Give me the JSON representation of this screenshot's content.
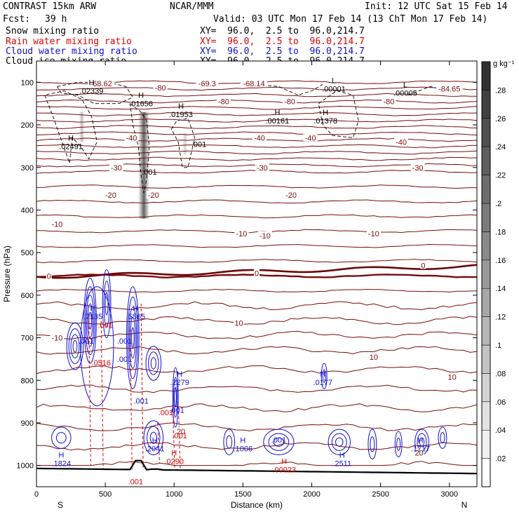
{
  "header": {
    "model": "CONTRAST 15km ARW",
    "org": "NCAR/MMM",
    "init": "Init: 12 UTC Sat 15 Feb 14",
    "fcst_label": "Fcst:",
    "fcst_value": "39 h",
    "valid": "Valid: 03 UTC Mon 17 Feb 14 (13 ChT Mon 17 Feb 14)",
    "fields": [
      {
        "name": "Snow mixing ratio",
        "color": "#000000",
        "xy": "XY=  96.0,  2.5 to  96.0,214.7"
      },
      {
        "name": "Rain water mixing ratio",
        "color": "#e00000",
        "xy": "XY=  96.0,  2.5 to  96.0,214.7"
      },
      {
        "name": "Cloud water mixing ratio",
        "color": "#1010d0",
        "xy": "XY=  96.0,  2.5 to  96.0,214.7"
      },
      {
        "name": "Cloud ice mixing ratio",
        "color": "#000000",
        "xy": "XY=  96.0,  2.5 to  96.0,214.7"
      }
    ]
  },
  "chart_data": {
    "type": "contour-cross-section",
    "xlabel": "Distance (km)",
    "ylabel": "Pressure (hPa)",
    "xlim": [
      0,
      3200
    ],
    "ylim": [
      1050,
      50
    ],
    "x_ticks": [
      0,
      500,
      1000,
      1500,
      2000,
      2500,
      3000
    ],
    "y_ticks": [
      100,
      200,
      300,
      400,
      500,
      600,
      700,
      800,
      900,
      1000
    ],
    "endpoints": {
      "left": "S",
      "right": "N"
    },
    "colorbar": {
      "unit": "g kg⁻¹",
      "ticks": [
        ".02",
        ".04",
        ".06",
        ".08",
        ".1",
        ".12",
        ".14",
        ".16",
        ".18",
        ".2",
        ".22",
        ".24",
        ".26",
        ".28"
      ],
      "values": [
        0.02,
        0.04,
        0.06,
        0.08,
        0.1,
        0.12,
        0.14,
        0.16,
        0.18,
        0.2,
        0.22,
        0.24,
        0.26,
        0.28
      ]
    },
    "temperature_labels": [
      {
        "text": "-68.62",
        "x": 470,
        "p": 103
      },
      {
        "text": "-69.3",
        "x": 1240,
        "p": 103
      },
      {
        "text": "-68.14",
        "x": 1580,
        "p": 103
      },
      {
        "text": "-84.65",
        "x": 3000,
        "p": 115
      },
      {
        "text": "-80",
        "x": 900,
        "p": 113
      },
      {
        "text": "-80",
        "x": 1360,
        "p": 145
      },
      {
        "text": "-80",
        "x": 1840,
        "p": 145
      },
      {
        "text": "-80",
        "x": 2560,
        "p": 145
      },
      {
        "text": "-40",
        "x": 690,
        "p": 230
      },
      {
        "text": "-40",
        "x": 1620,
        "p": 230
      },
      {
        "text": "-40",
        "x": 1990,
        "p": 230
      },
      {
        "text": "-40",
        "x": 2650,
        "p": 240
      },
      {
        "text": "-30",
        "x": 580,
        "p": 300
      },
      {
        "text": "-30",
        "x": 1640,
        "p": 300
      },
      {
        "text": "-30",
        "x": 2770,
        "p": 300
      },
      {
        "text": "-20",
        "x": 540,
        "p": 365
      },
      {
        "text": "-20",
        "x": 850,
        "p": 365
      },
      {
        "text": "-20",
        "x": 1850,
        "p": 365
      },
      {
        "text": "-10",
        "x": 150,
        "p": 433
      },
      {
        "text": "-10",
        "x": 1490,
        "p": 455
      },
      {
        "text": "-10",
        "x": 1660,
        "p": 460
      },
      {
        "text": "-10",
        "x": 2450,
        "p": 455
      },
      {
        "text": "0",
        "x": 90,
        "p": 555
      },
      {
        "text": "0",
        "x": 1600,
        "p": 548
      },
      {
        "text": "0",
        "x": 2810,
        "p": 530
      },
      {
        "text": "10",
        "x": 1470,
        "p": 665
      },
      {
        "text": "10",
        "x": 2450,
        "p": 745
      },
      {
        "text": "10",
        "x": 3020,
        "p": 792
      },
      {
        "text": "-10",
        "x": 150,
        "p": 700
      },
      {
        "text": "20",
        "x": 1050,
        "p": 920
      },
      {
        "text": "20",
        "x": 2780,
        "p": 970
      }
    ],
    "maxima_labels": [
      {
        "letter": "H",
        "value": ".02339",
        "x": 400,
        "p": 110,
        "color": "#000000"
      },
      {
        "letter": "H",
        "value": ".01656",
        "x": 760,
        "p": 140,
        "color": "#000000"
      },
      {
        "letter": "H",
        "value": ".01953",
        "x": 1050,
        "p": 165,
        "color": "#000000"
      },
      {
        "letter": "H",
        "value": ".00161",
        "x": 1750,
        "p": 180,
        "color": "#000000"
      },
      {
        "letter": "H",
        "value": ".01378",
        "x": 2100,
        "p": 180,
        "color": "#000000"
      },
      {
        "letter": "H",
        "value": ".02491",
        "x": 250,
        "p": 240,
        "color": "#000000"
      },
      {
        "letter": "L",
        "value": ".00005",
        "x": 2680,
        "p": 115,
        "color": "#000000"
      },
      {
        "letter": "L",
        "value": ".00001",
        "x": 2160,
        "p": 105,
        "color": "#000000"
      },
      {
        "letter": "H",
        "value": ".7135",
        "x": 410,
        "p": 640,
        "color": "#1010d0"
      },
      {
        "letter": "H",
        "value": ".5565",
        "x": 720,
        "p": 640,
        "color": "#1010d0"
      },
      {
        "letter": "H",
        "value": ".2279",
        "x": 1040,
        "p": 795,
        "color": "#1010d0"
      },
      {
        "letter": "H",
        "value": ".0177",
        "x": 2080,
        "p": 795,
        "color": "#1010d0"
      },
      {
        "letter": "H",
        "value": ".2041",
        "x": 860,
        "p": 950,
        "color": "#1010d0"
      },
      {
        "letter": "H",
        "value": ".1824",
        "x": 180,
        "p": 985,
        "color": "#1010d0"
      },
      {
        "letter": "H",
        "value": ".1006",
        "x": 1500,
        "p": 950,
        "color": "#1010d0"
      },
      {
        "letter": "H",
        "value": ".2511",
        "x": 2220,
        "p": 985,
        "color": "#1010d0"
      },
      {
        "letter": "H",
        "value": ".1717",
        "x": 2790,
        "p": 950,
        "color": "#1010d0"
      },
      {
        "letter": "H",
        "value": ".00023",
        "x": 1800,
        "p": 1000,
        "color": "#e00000"
      },
      {
        "letter": "H",
        "value": ".0290",
        "x": 1000,
        "p": 980,
        "color": "#e00000"
      }
    ],
    "small_labels": [
      {
        "text": ".001",
        "x": 820,
        "p": 310,
        "color": "#000000"
      },
      {
        "text": ".001",
        "x": 1180,
        "p": 245,
        "color": "#000000"
      },
      {
        "text": ".001",
        "x": 1760,
        "p": 940,
        "color": "#1010d0"
      },
      {
        "text": ".001",
        "x": 1020,
        "p": 870,
        "color": "#1010d0"
      },
      {
        "text": ".001",
        "x": 760,
        "p": 848,
        "color": "#1010d0"
      },
      {
        "text": ".001",
        "x": 360,
        "p": 707,
        "color": "#1010d0"
      },
      {
        "text": ".001",
        "x": 640,
        "p": 707,
        "color": "#1010d0"
      },
      {
        "text": ".001",
        "x": 640,
        "p": 750,
        "color": "#1010d0"
      },
      {
        "text": ".001",
        "x": 500,
        "p": 670,
        "color": "#e00000"
      },
      {
        "text": ".0516",
        "x": 470,
        "p": 758,
        "color": "#e00000"
      },
      {
        "text": ".001",
        "x": 940,
        "p": 875,
        "color": "#e00000"
      },
      {
        "text": ".001",
        "x": 1040,
        "p": 930,
        "color": "#e00000"
      },
      {
        "text": ".001",
        "x": 720,
        "p": 1038,
        "color": "#e00000"
      }
    ]
  }
}
